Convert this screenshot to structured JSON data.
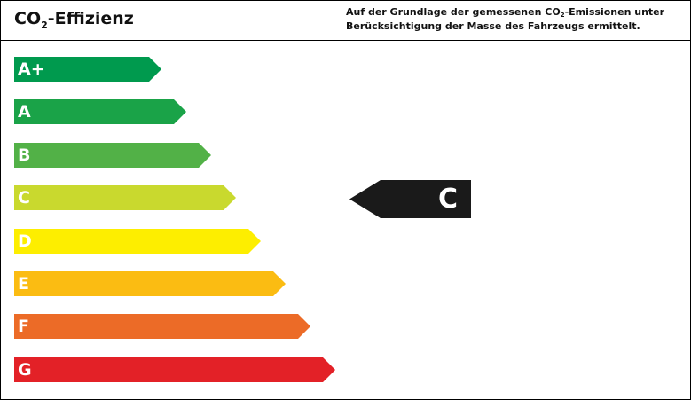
{
  "header": {
    "title_main": "CO",
    "title_sub": "2",
    "title_rest": "-Effizienz",
    "note_line1_pre": "Auf der Grundlage der gemessenen CO",
    "note_line1_sub": "2",
    "note_line1_post": "-Emissionen unter",
    "note_line2": "Berücksichtigung der Masse des Fahrzeugs ermittelt."
  },
  "scale": {
    "classes": [
      {
        "label": "A+",
        "color": "#009a4e"
      },
      {
        "label": "A",
        "color": "#1aa348"
      },
      {
        "label": "B",
        "color": "#52b147"
      },
      {
        "label": "C",
        "color": "#c9d92e"
      },
      {
        "label": "D",
        "color": "#fdee00"
      },
      {
        "label": "E",
        "color": "#fbbc12"
      },
      {
        "label": "F",
        "color": "#ec6b27"
      },
      {
        "label": "G",
        "color": "#e32127"
      }
    ]
  },
  "indicator": {
    "label": "C",
    "color": "#1a1a1a"
  }
}
